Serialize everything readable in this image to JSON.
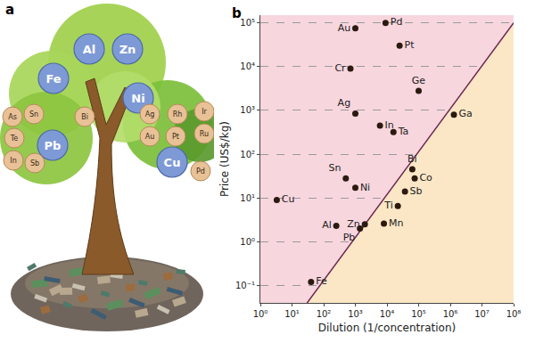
{
  "panel_a": {
    "label": "a",
    "large_elements": [
      "Al",
      "Zn",
      "Fe",
      "Ni",
      "Pb",
      "Cu"
    ],
    "small_elements": [
      "As",
      "Sn",
      "Bi",
      "Te",
      "In",
      "Sb",
      "Ag",
      "Rh",
      "Au",
      "Pt",
      "Ir",
      "Ru",
      "Pd"
    ],
    "large_color": "#7e9ad6",
    "small_color": "#e8c196"
  },
  "chart_data": {
    "type": "scatter",
    "annotations": [
      {
        "text": "b"
      }
    ],
    "x_label": "Dilution (1/concentration)",
    "y_label": "Price (US$/kg)",
    "labels": [
      "Pd",
      "Au",
      "Pt",
      "Cr",
      "Ge",
      "Ag",
      "In",
      "Ta",
      "Bi",
      "Co",
      "Sn",
      "Ni",
      "Sb",
      "Cu",
      "Ti",
      "Al",
      "Zn",
      "Mn",
      "Pb",
      "Fe",
      "Ga"
    ],
    "x": [
      9000,
      1000,
      25000,
      700,
      100000,
      1000,
      6000,
      16000,
      63000,
      75000,
      500,
      1000,
      37000,
      3.3,
      22000,
      250,
      2000,
      8000,
      1400,
      40,
      1300000
    ],
    "values": [
      100000,
      75000,
      30000,
      9000,
      2800,
      850,
      450,
      320,
      45,
      28,
      28,
      17,
      14,
      9,
      6.5,
      2.3,
      2.5,
      2.6,
      2,
      0.12,
      800
    ],
    "color": "#2b1a10",
    "marker": "circle",
    "boundary": {
      "x": [
        30,
        100000000
      ],
      "values": [
        0.04,
        100000
      ],
      "color": "#6b2a52",
      "line_style": "solid"
    },
    "regions": {
      "above": "#f8d6de",
      "below": "#fbe7c6"
    },
    "log": true,
    "grid": "y",
    "xlim": [
      1,
      100000000
    ],
    "ylim": [
      0.04,
      150000
    ],
    "xticks": [
      {
        "value": 1,
        "label": "10⁰"
      },
      {
        "value": 10,
        "label": "10¹"
      },
      {
        "value": 100,
        "label": "10²"
      },
      {
        "value": 1000,
        "label": "10³"
      },
      {
        "value": 10000,
        "label": "10⁴"
      },
      {
        "value": 100000,
        "label": "10⁵"
      },
      {
        "value": 1000000,
        "label": "10⁶"
      },
      {
        "value": 10000000,
        "label": "10⁷"
      },
      {
        "value": 100000000,
        "label": "10⁸"
      }
    ],
    "yticks": [
      {
        "value": 0.1,
        "label": "10⁻¹"
      },
      {
        "value": 1,
        "label": "10⁰"
      },
      {
        "value": 10,
        "label": "10¹"
      },
      {
        "value": 100,
        "label": "10²"
      },
      {
        "value": 1000,
        "label": "10³"
      },
      {
        "value": 10000,
        "label": "10⁴"
      },
      {
        "value": 100000,
        "label": "10⁵"
      }
    ]
  }
}
